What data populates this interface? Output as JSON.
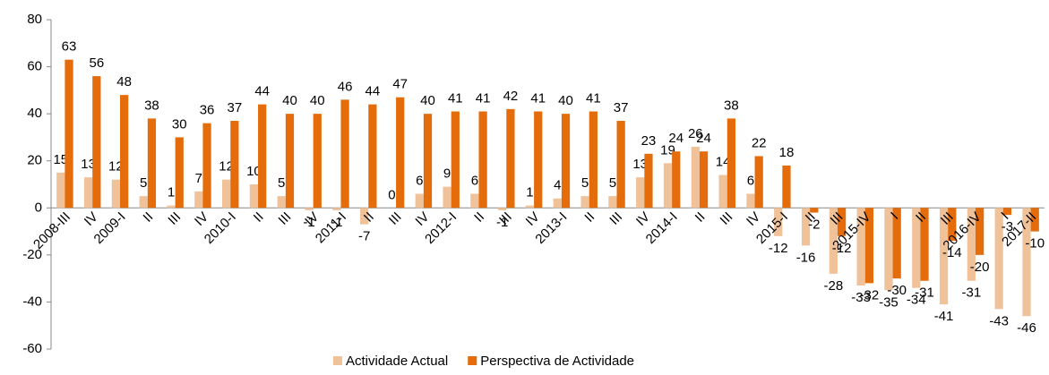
{
  "chart_data": {
    "type": "bar",
    "categories": [
      "2008-III",
      "IV",
      "2009-I",
      "II",
      "III",
      "IV",
      "2010-I",
      "II",
      "III",
      "IV",
      "2011-I",
      "II",
      "III",
      "IV",
      "2012-I",
      "II",
      "III",
      "IV",
      "2013-I",
      "II",
      "III",
      "IV",
      "2014-I",
      "II",
      "III",
      "IV",
      "2015-I",
      "II",
      "III",
      "2015-IV",
      "I",
      "II",
      "III",
      "2016-IV",
      "I",
      "2017-II"
    ],
    "series": [
      {
        "name": "Actividade Actual",
        "color": "#f0c29a",
        "values": [
          15,
          13,
          12,
          5,
          1,
          7,
          12,
          10,
          5,
          -1,
          -1,
          -7,
          0,
          6,
          9,
          6,
          -1,
          1,
          4,
          5,
          5,
          13,
          19,
          26,
          14,
          6,
          -12,
          -16,
          -28,
          -33,
          -35,
          -34,
          -41,
          -31,
          -43,
          -46
        ]
      },
      {
        "name": "Perspectiva de Actividade",
        "color": "#e46c0a",
        "values": [
          63,
          56,
          48,
          38,
          30,
          36,
          37,
          44,
          40,
          40,
          46,
          44,
          47,
          40,
          41,
          41,
          42,
          41,
          40,
          41,
          37,
          23,
          24,
          24,
          38,
          22,
          18,
          -2,
          -12,
          -32,
          -30,
          -31,
          -14,
          -20,
          -3,
          -10
        ]
      }
    ],
    "ylim": [
      -60,
      80
    ],
    "yticks": [
      -60,
      -40,
      -20,
      0,
      20,
      40,
      60,
      80
    ],
    "legend": "bottom"
  }
}
